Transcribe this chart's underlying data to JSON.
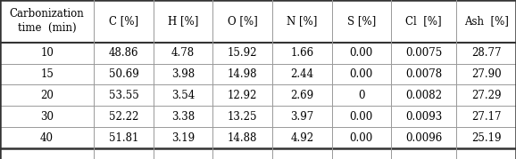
{
  "columns": [
    "Carbonization\ntime  (min)",
    "C [%]",
    "H [%]",
    "O [%]",
    "N [%]",
    "S [%]",
    "Cl  [%]",
    "Ash  [%]"
  ],
  "rows": [
    [
      "10",
      "48.86",
      "4.78",
      "15.92",
      "1.66",
      "0.00",
      "0.0075",
      "28.77"
    ],
    [
      "15",
      "50.69",
      "3.98",
      "14.98",
      "2.44",
      "0.00",
      "0.0078",
      "27.90"
    ],
    [
      "20",
      "53.55",
      "3.54",
      "12.92",
      "2.69",
      "0",
      "0.0082",
      "27.29"
    ],
    [
      "30",
      "52.22",
      "3.38",
      "13.25",
      "3.97",
      "0.00",
      "0.0093",
      "27.17"
    ],
    [
      "40",
      "51.81",
      "3.19",
      "14.88",
      "4.92",
      "0.00",
      "0.0096",
      "25.19"
    ]
  ],
  "col_widths": [
    1.58,
    1.0,
    1.0,
    1.0,
    1.0,
    1.0,
    1.1,
    1.0
  ],
  "line_color": "#999999",
  "outer_line_color": "#333333",
  "text_color": "#000000",
  "font_size": 8.5,
  "fig_width": 5.78,
  "fig_height": 1.79,
  "dpi": 100
}
